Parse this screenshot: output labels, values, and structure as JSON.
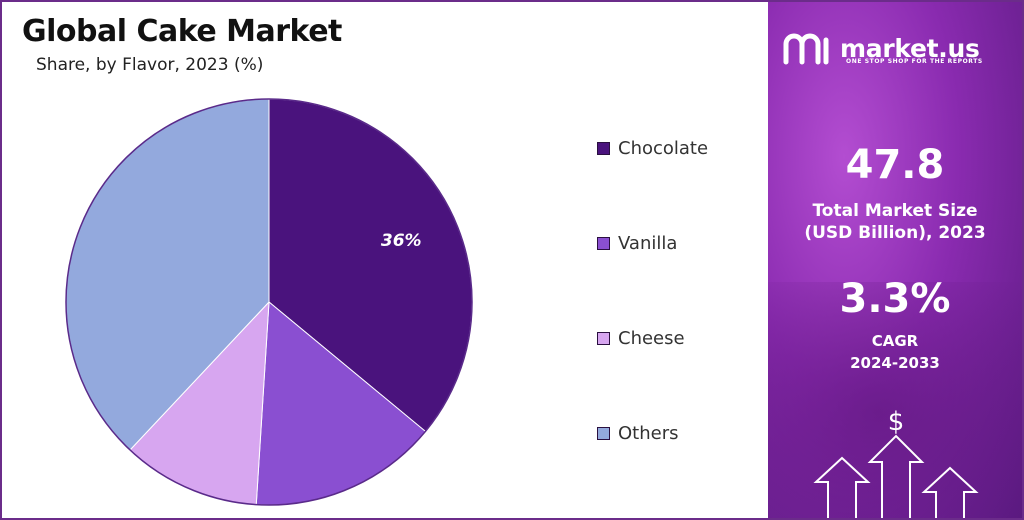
{
  "chart_data": {
    "type": "pie",
    "title": "Global Cake Market",
    "subtitle": "Share, by Flavor, 2023 (%)",
    "slices": [
      {
        "label": "Chocolate",
        "value": 36,
        "color": "#4a137d",
        "data_label": "36%"
      },
      {
        "label": "Vanilla",
        "value": 15,
        "color": "#8a4fd1",
        "data_label": ""
      },
      {
        "label": "Cheese",
        "value": 11,
        "color": "#d7a6f0",
        "data_label": ""
      },
      {
        "label": "Others",
        "value": 38,
        "color": "#93a9dd",
        "data_label": ""
      }
    ],
    "legend_position": "right"
  },
  "brand": {
    "name": "market.us",
    "tagline": "ONE STOP SHOP FOR THE REPORTS"
  },
  "stats": {
    "market_size_value": "47.8",
    "market_size_label_1": "Total Market Size",
    "market_size_label_2": "(USD Billion), 2023",
    "cagr_value": "3.3%",
    "cagr_label_1": "CAGR",
    "cagr_label_2": "2024-2033"
  },
  "icons": {
    "dollar": "$",
    "growth": "growth-arrows-icon"
  },
  "colors": {
    "border": "#6b2c8a",
    "panel": "#8a2bb0"
  }
}
